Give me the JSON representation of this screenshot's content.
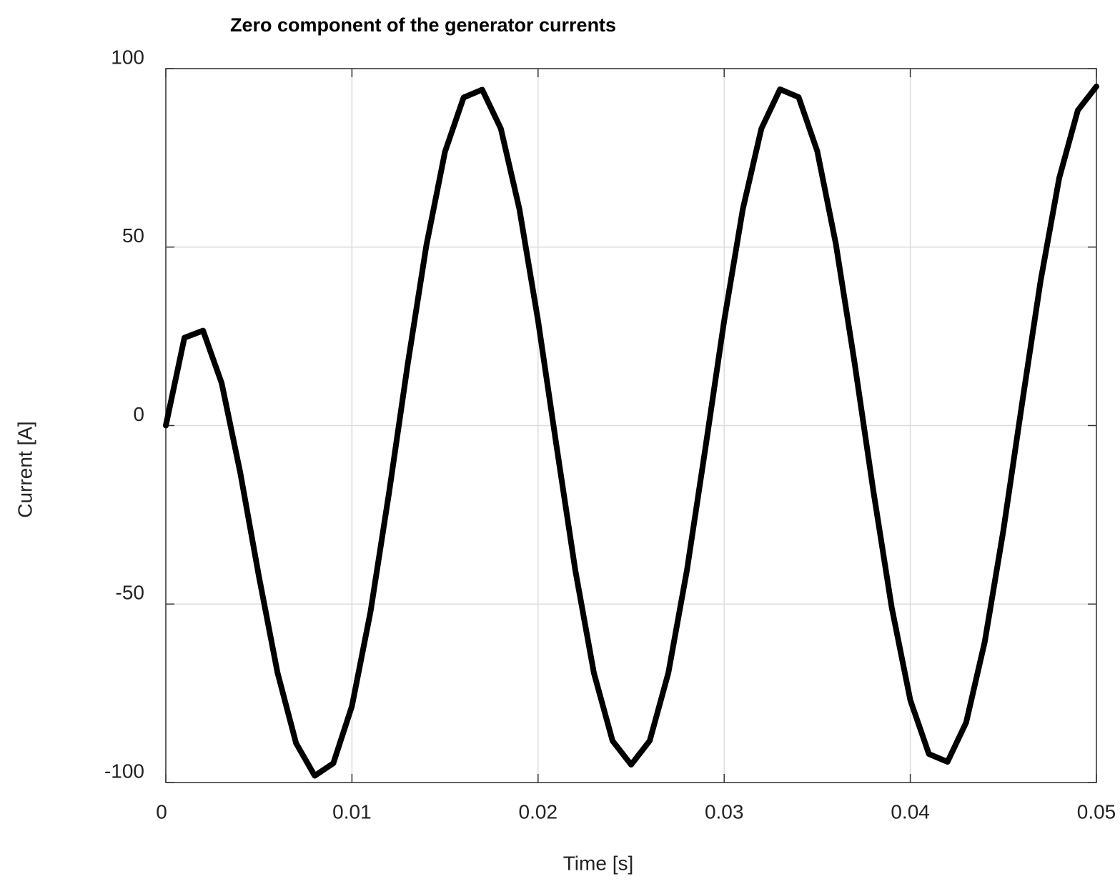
{
  "chart_data": {
    "type": "line",
    "title": "Zero component of the generator currents",
    "x_label": "Time   [s]",
    "y_label": "Current   [A]",
    "x": [
      0,
      0.001,
      0.002,
      0.003,
      0.004,
      0.005,
      0.006,
      0.007,
      0.008,
      0.009,
      0.01,
      0.011,
      0.012,
      0.013,
      0.014,
      0.015,
      0.016,
      0.017,
      0.018,
      0.019,
      0.02,
      0.021,
      0.022,
      0.023,
      0.024,
      0.025,
      0.026,
      0.027,
      0.028,
      0.029,
      0.03,
      0.031,
      0.032,
      0.033,
      0.034,
      0.035,
      0.036,
      0.037,
      0.038,
      0.039,
      0.04,
      0.041,
      0.042,
      0.043,
      0.044,
      0.045,
      0.046,
      0.047,
      0.048,
      0.049,
      0.05
    ],
    "series": [
      {
        "color": "#000000",
        "values": [
          0,
          24.6,
          26.6,
          11.9,
          -13.2,
          -42.2,
          -69.2,
          -89.0,
          -98.1,
          -94.6,
          -78.6,
          -52.1,
          -18.6,
          17.3,
          50.5,
          76.7,
          91.9,
          94.1,
          83.2,
          60.6,
          29.4,
          -6.0,
          -40.5,
          -69.3,
          -88.3,
          -95,
          -88.3,
          -69.3,
          -40.5,
          -6.0,
          29.4,
          60.6,
          83.2,
          94.2,
          92.0,
          76.9,
          50.9,
          17.8,
          -17.8,
          -50.9,
          -76.9,
          -92.0,
          -94.2,
          -83.2,
          -60.6,
          -29.4,
          6.0,
          40.5,
          69.3,
          88.3,
          95
        ]
      }
    ],
    "xlim": [
      0,
      0.05
    ],
    "xticks": [
      0,
      0.01,
      0.02,
      0.03,
      0.04,
      0.05
    ],
    "ylim": [
      -100,
      100
    ],
    "yticks": [
      -100,
      -50,
      0,
      50,
      100
    ],
    "grid": true
  }
}
